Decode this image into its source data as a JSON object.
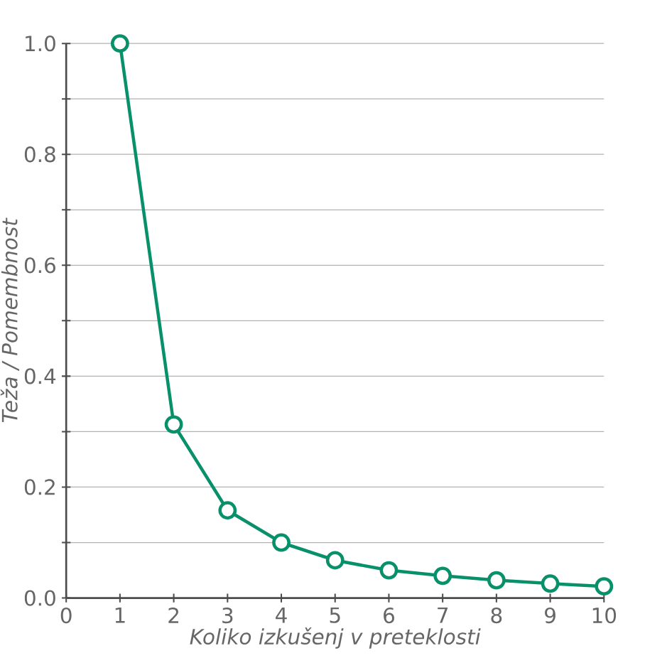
{
  "chart_data": {
    "type": "line",
    "xlabel": "Koliko izkušenj v preteklosti",
    "ylabel": "Teža / Pomembnost",
    "x": [
      1,
      2,
      3,
      4,
      5,
      6,
      7,
      8,
      9,
      10
    ],
    "series": [
      {
        "color": "#08906a",
        "values": [
          1.0,
          0.313,
          0.158,
          0.1,
          0.068,
          0.05,
          0.04,
          0.032,
          0.026,
          0.021
        ]
      }
    ],
    "xlim": [
      0,
      10
    ],
    "xticks": [
      0,
      1,
      2,
      3,
      4,
      5,
      6,
      7,
      8,
      9,
      10
    ],
    "ylim": [
      0,
      1
    ],
    "yticks": [
      {
        "value": 0,
        "label": "0.0"
      },
      {
        "value": 0.1,
        "label": null
      },
      {
        "value": 0.2,
        "label": "0.2"
      },
      {
        "value": 0.3,
        "label": null
      },
      {
        "value": 0.4,
        "label": "0.4"
      },
      {
        "value": 0.5,
        "label": null
      },
      {
        "value": 0.6,
        "label": "0.6"
      },
      {
        "value": 0.7,
        "label": null
      },
      {
        "value": 0.8,
        "label": "0.8"
      },
      {
        "value": 0.9,
        "label": null
      },
      {
        "value": 1.0,
        "label": "1.0"
      }
    ],
    "grid": "y",
    "marker": "circle",
    "line_style": "solid"
  }
}
